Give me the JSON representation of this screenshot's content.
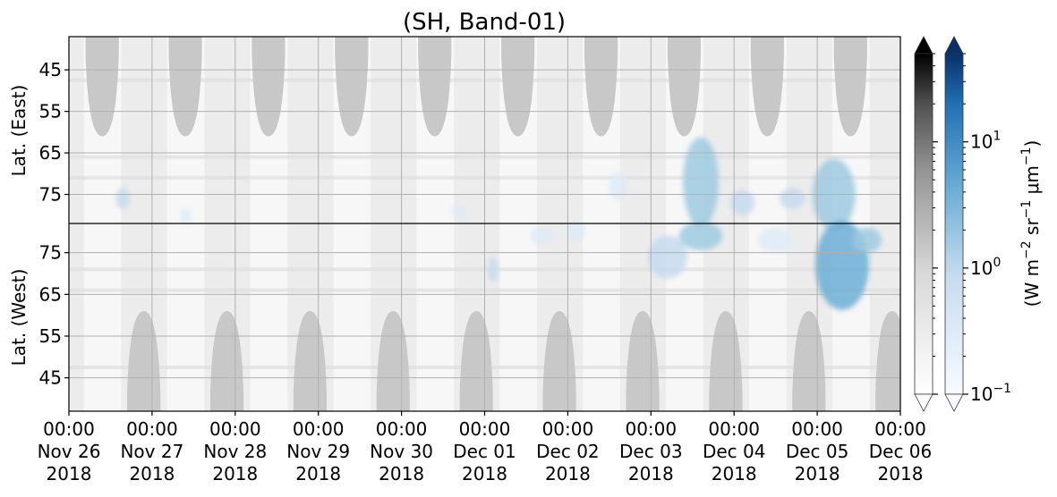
{
  "chart_data": {
    "type": "heatmap",
    "title": "(SH, Band-01)",
    "upper_panel": {
      "ylabel": "Lat. (East)",
      "yticks": [
        "45",
        "55",
        "65",
        "75"
      ],
      "ytick_values": [
        45,
        55,
        65,
        75
      ],
      "ylim": [
        37,
        82
      ]
    },
    "lower_panel": {
      "ylabel": "Lat. (West)",
      "yticks": [
        "75",
        "65",
        "55",
        "45"
      ],
      "ytick_values": [
        75,
        65,
        55,
        45
      ],
      "ylim": [
        82,
        37
      ]
    },
    "x_axis": {
      "range": [
        "2018-11-26 00:00",
        "2018-12-06 00:00"
      ],
      "ticks": [
        {
          "time": "00:00",
          "date": "Nov 26",
          "year": "2018"
        },
        {
          "time": "00:00",
          "date": "Nov 27",
          "year": "2018"
        },
        {
          "time": "00:00",
          "date": "Nov 28",
          "year": "2018"
        },
        {
          "time": "00:00",
          "date": "Nov 29",
          "year": "2018"
        },
        {
          "time": "00:00",
          "date": "Nov 30",
          "year": "2018"
        },
        {
          "time": "00:00",
          "date": "Dec 01",
          "year": "2018"
        },
        {
          "time": "00:00",
          "date": "Dec 02",
          "year": "2018"
        },
        {
          "time": "00:00",
          "date": "Dec 03",
          "year": "2018"
        },
        {
          "time": "00:00",
          "date": "Dec 04",
          "year": "2018"
        },
        {
          "time": "00:00",
          "date": "Dec 05",
          "year": "2018"
        },
        {
          "time": "00:00",
          "date": "Dec 06",
          "year": "2018"
        }
      ]
    },
    "grid": true,
    "colorbar": {
      "label_main": "(W m",
      "label_pieces": [
        {
          "text": "(W m",
          "sup": false
        },
        {
          "text": "−2",
          "sup": true
        },
        {
          "text": " sr",
          "sup": false
        },
        {
          "text": "−1",
          "sup": true
        },
        {
          "text": " μm",
          "sup": false
        },
        {
          "text": "−1",
          "sup": true
        },
        {
          "text": ")",
          "sup": false
        }
      ],
      "scale": "log",
      "range": [
        0.1,
        50
      ],
      "ticks": [
        {
          "value": 10,
          "base": "10",
          "exp": "1"
        },
        {
          "value": 1,
          "base": "10",
          "exp": "0"
        },
        {
          "value": 0.1,
          "base": "10",
          "exp": "−1"
        }
      ],
      "extend": "both",
      "colormaps": [
        {
          "name": "Greys",
          "low": "#ffffff",
          "high": "#000000"
        },
        {
          "name": "Blues",
          "low": "#f7fbff",
          "high": "#08306b"
        }
      ]
    },
    "sunlit_lobes": {
      "color": "#c8c8c8",
      "upper_centers_days": [
        0.4,
        1.4,
        2.4,
        3.4,
        4.4,
        5.4,
        6.4,
        7.4,
        8.4,
        9.4
      ],
      "lower_centers_days": [
        0.9,
        1.9,
        2.9,
        3.9,
        4.9,
        5.9,
        6.9,
        7.9,
        8.9,
        9.9
      ],
      "edge_lat": 61
    }
  }
}
